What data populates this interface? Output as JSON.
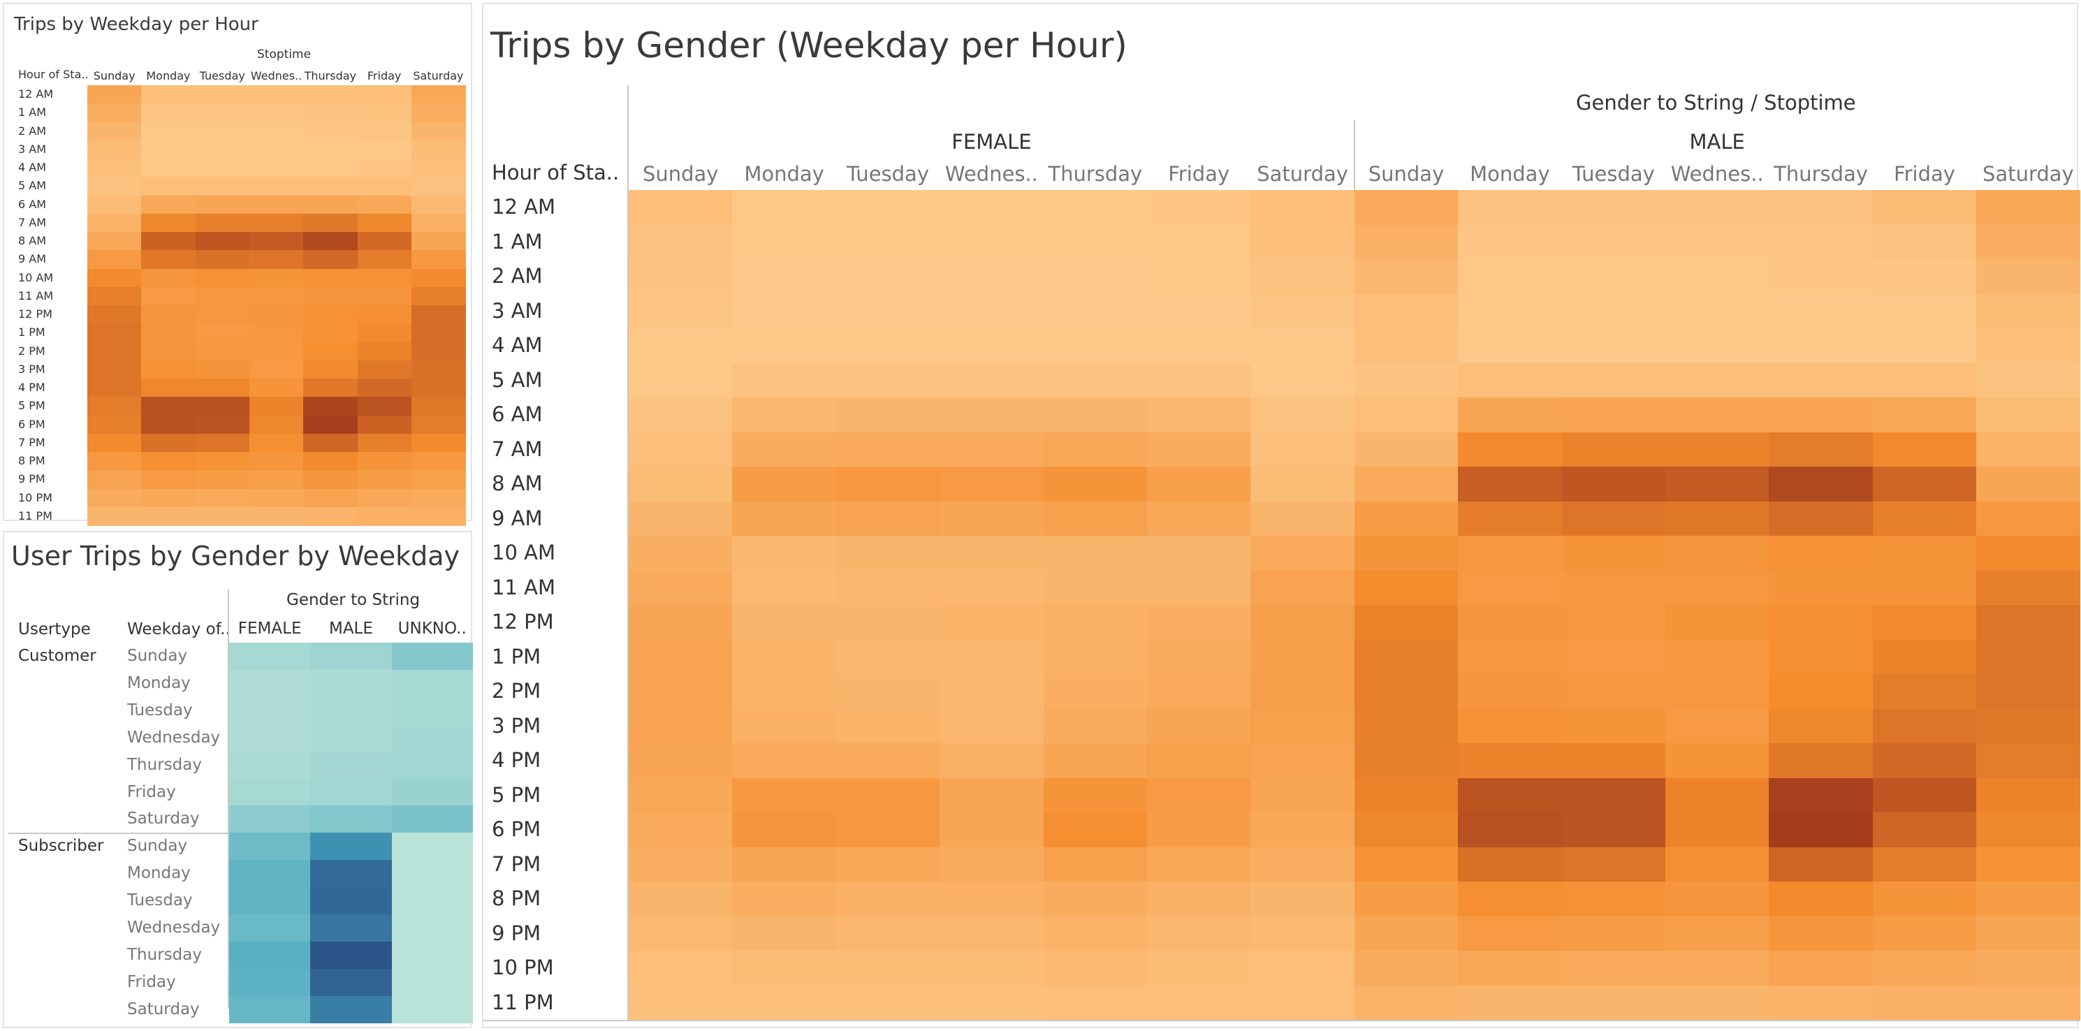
{
  "panels": {
    "weekday_hour": {
      "title": "Trips by Weekday per Hour",
      "col_header": "Stoptime",
      "row_header": "Hour of Sta.."
    },
    "usertype": {
      "title": "User Trips by Gender by Weekday",
      "col_header": "Gender to String",
      "row_header_1": "Usertype",
      "row_header_2": "Weekday of.."
    },
    "gender_hour": {
      "title": "Trips by Gender (Weekday per Hour)",
      "col_header": "Gender to String  /  Stoptime",
      "row_header": "Hour of Sta.."
    }
  },
  "colors": {
    "orange_light": "#fdc98a",
    "orange_mid": "#f58c2d",
    "orange_dark": "#a23a1c",
    "teal_light": "#bde5d9",
    "teal_mid": "#45a5be",
    "teal_dark": "#2b5287"
  },
  "chart_data": [
    {
      "type": "heatmap",
      "title": "Trips by Weekday per Hour",
      "x_header": "Stoptime",
      "y_header": "Hour of Sta..",
      "columns": [
        "Sunday",
        "Monday",
        "Tuesday",
        "Wednes..",
        "Thursday",
        "Friday",
        "Saturday"
      ],
      "rows": [
        "12 AM",
        "1 AM",
        "2 AM",
        "3 AM",
        "4 AM",
        "5 AM",
        "6 AM",
        "7 AM",
        "8 AM",
        "9 AM",
        "10 AM",
        "11 AM",
        "12 PM",
        "1 PM",
        "2 PM",
        "3 PM",
        "4 PM",
        "5 PM",
        "6 PM",
        "7 PM",
        "8 PM",
        "9 PM",
        "10 PM",
        "11 PM"
      ],
      "values": [
        [
          0.32,
          0.08,
          0.08,
          0.08,
          0.09,
          0.1,
          0.3
        ],
        [
          0.24,
          0.04,
          0.04,
          0.04,
          0.05,
          0.06,
          0.24
        ],
        [
          0.18,
          0.02,
          0.02,
          0.02,
          0.03,
          0.04,
          0.18
        ],
        [
          0.12,
          0.01,
          0.01,
          0.01,
          0.02,
          0.02,
          0.12
        ],
        [
          0.08,
          0.02,
          0.02,
          0.02,
          0.02,
          0.03,
          0.08
        ],
        [
          0.06,
          0.1,
          0.1,
          0.1,
          0.1,
          0.1,
          0.07
        ],
        [
          0.12,
          0.3,
          0.32,
          0.32,
          0.32,
          0.3,
          0.14
        ],
        [
          0.2,
          0.58,
          0.62,
          0.62,
          0.66,
          0.58,
          0.22
        ],
        [
          0.3,
          0.78,
          0.84,
          0.82,
          0.92,
          0.74,
          0.32
        ],
        [
          0.42,
          0.66,
          0.7,
          0.68,
          0.74,
          0.64,
          0.44
        ],
        [
          0.56,
          0.46,
          0.5,
          0.48,
          0.5,
          0.5,
          0.56
        ],
        [
          0.62,
          0.42,
          0.44,
          0.44,
          0.46,
          0.46,
          0.62
        ],
        [
          0.66,
          0.46,
          0.44,
          0.46,
          0.5,
          0.52,
          0.72
        ],
        [
          0.68,
          0.46,
          0.42,
          0.44,
          0.5,
          0.56,
          0.72
        ],
        [
          0.68,
          0.46,
          0.44,
          0.44,
          0.52,
          0.6,
          0.72
        ],
        [
          0.68,
          0.5,
          0.48,
          0.42,
          0.56,
          0.66,
          0.7
        ],
        [
          0.68,
          0.58,
          0.58,
          0.48,
          0.66,
          0.74,
          0.7
        ],
        [
          0.64,
          0.88,
          0.88,
          0.6,
          0.94,
          0.86,
          0.66
        ],
        [
          0.62,
          0.88,
          0.86,
          0.58,
          0.98,
          0.78,
          0.64
        ],
        [
          0.56,
          0.7,
          0.68,
          0.52,
          0.76,
          0.62,
          0.56
        ],
        [
          0.44,
          0.52,
          0.5,
          0.46,
          0.56,
          0.48,
          0.44
        ],
        [
          0.34,
          0.42,
          0.4,
          0.38,
          0.46,
          0.4,
          0.36
        ],
        [
          0.26,
          0.3,
          0.28,
          0.3,
          0.34,
          0.3,
          0.28
        ],
        [
          0.18,
          0.18,
          0.18,
          0.18,
          0.2,
          0.22,
          0.22
        ]
      ]
    },
    {
      "type": "heatmap",
      "title": "User Trips by Gender by Weekday",
      "x_header": "Gender to String",
      "columns": [
        "FEMALE",
        "MALE",
        "UNKNO.."
      ],
      "row_groups": [
        {
          "label": "Customer",
          "rows": [
            "Sunday",
            "Monday",
            "Tuesday",
            "Wednesday",
            "Thursday",
            "Friday",
            "Saturday"
          ]
        },
        {
          "label": "Subscriber",
          "rows": [
            "Sunday",
            "Monday",
            "Tuesday",
            "Wednesday",
            "Thursday",
            "Friday",
            "Saturday"
          ]
        }
      ],
      "values": [
        [
          0.1,
          0.14,
          0.26
        ],
        [
          0.06,
          0.08,
          0.1
        ],
        [
          0.06,
          0.08,
          0.1
        ],
        [
          0.06,
          0.08,
          0.11
        ],
        [
          0.08,
          0.11,
          0.13
        ],
        [
          0.1,
          0.13,
          0.16
        ],
        [
          0.22,
          0.26,
          0.3
        ],
        [
          0.36,
          0.66,
          0.02
        ],
        [
          0.42,
          0.86,
          0.02
        ],
        [
          0.42,
          0.88,
          0.02
        ],
        [
          0.38,
          0.8,
          0.02
        ],
        [
          0.46,
          0.99,
          0.02
        ],
        [
          0.44,
          0.9,
          0.02
        ],
        [
          0.4,
          0.76,
          0.02
        ]
      ]
    },
    {
      "type": "heatmap",
      "title": "Trips by Gender (Weekday per Hour)",
      "x_header": "Gender to String  /  Stoptime",
      "y_header": "Hour of Sta..",
      "groups": [
        {
          "label": "FEMALE",
          "columns": [
            "Sunday",
            "Monday",
            "Tuesday",
            "Wednes..",
            "Thursday",
            "Friday",
            "Saturday"
          ]
        },
        {
          "label": "MALE",
          "columns": [
            "Sunday",
            "Monday",
            "Tuesday",
            "Wednes..",
            "Thursday",
            "Friday",
            "Saturday"
          ]
        }
      ],
      "rows": [
        "12 AM",
        "1 AM",
        "2 AM",
        "3 AM",
        "4 AM",
        "5 AM",
        "6 AM",
        "7 AM",
        "8 AM",
        "9 AM",
        "10 AM",
        "11 AM",
        "12 PM",
        "1 PM",
        "2 PM",
        "3 PM",
        "4 PM",
        "5 PM",
        "6 PM",
        "7 PM",
        "8 PM",
        "9 PM",
        "10 PM",
        "11 PM"
      ],
      "values": [
        [
          0.1,
          0.02,
          0.02,
          0.02,
          0.02,
          0.03,
          0.1,
          0.28,
          0.06,
          0.06,
          0.06,
          0.07,
          0.12,
          0.3
        ],
        [
          0.07,
          0.01,
          0.01,
          0.01,
          0.01,
          0.02,
          0.08,
          0.22,
          0.03,
          0.03,
          0.03,
          0.04,
          0.06,
          0.24
        ],
        [
          0.05,
          0.0,
          0.0,
          0.0,
          0.0,
          0.01,
          0.06,
          0.16,
          0.02,
          0.02,
          0.02,
          0.03,
          0.04,
          0.18
        ],
        [
          0.04,
          0.0,
          0.0,
          0.0,
          0.0,
          0.0,
          0.04,
          0.1,
          0.01,
          0.01,
          0.01,
          0.02,
          0.02,
          0.12
        ],
        [
          0.02,
          0.01,
          0.01,
          0.01,
          0.01,
          0.01,
          0.02,
          0.08,
          0.02,
          0.02,
          0.02,
          0.02,
          0.02,
          0.08
        ],
        [
          0.02,
          0.06,
          0.06,
          0.06,
          0.06,
          0.06,
          0.02,
          0.05,
          0.1,
          0.1,
          0.1,
          0.1,
          0.1,
          0.06
        ],
        [
          0.06,
          0.16,
          0.18,
          0.18,
          0.18,
          0.16,
          0.06,
          0.1,
          0.32,
          0.34,
          0.34,
          0.34,
          0.3,
          0.12
        ],
        [
          0.08,
          0.26,
          0.28,
          0.28,
          0.3,
          0.26,
          0.08,
          0.18,
          0.56,
          0.6,
          0.6,
          0.64,
          0.56,
          0.2
        ],
        [
          0.12,
          0.4,
          0.44,
          0.42,
          0.48,
          0.38,
          0.12,
          0.28,
          0.8,
          0.84,
          0.82,
          0.92,
          0.76,
          0.32
        ],
        [
          0.18,
          0.32,
          0.34,
          0.32,
          0.36,
          0.3,
          0.18,
          0.4,
          0.64,
          0.68,
          0.66,
          0.72,
          0.62,
          0.44
        ],
        [
          0.24,
          0.16,
          0.18,
          0.18,
          0.18,
          0.18,
          0.28,
          0.48,
          0.44,
          0.48,
          0.46,
          0.5,
          0.48,
          0.56
        ],
        [
          0.28,
          0.14,
          0.16,
          0.16,
          0.18,
          0.18,
          0.34,
          0.54,
          0.42,
          0.44,
          0.44,
          0.48,
          0.48,
          0.62
        ],
        [
          0.32,
          0.18,
          0.18,
          0.2,
          0.22,
          0.24,
          0.38,
          0.6,
          0.46,
          0.44,
          0.48,
          0.52,
          0.56,
          0.68
        ],
        [
          0.34,
          0.2,
          0.16,
          0.16,
          0.22,
          0.26,
          0.38,
          0.62,
          0.44,
          0.42,
          0.44,
          0.52,
          0.6,
          0.68
        ],
        [
          0.34,
          0.2,
          0.18,
          0.16,
          0.24,
          0.28,
          0.38,
          0.62,
          0.46,
          0.44,
          0.44,
          0.54,
          0.64,
          0.68
        ],
        [
          0.34,
          0.22,
          0.2,
          0.16,
          0.26,
          0.32,
          0.36,
          0.62,
          0.5,
          0.48,
          0.42,
          0.58,
          0.68,
          0.66
        ],
        [
          0.32,
          0.28,
          0.28,
          0.22,
          0.32,
          0.36,
          0.34,
          0.62,
          0.6,
          0.6,
          0.48,
          0.66,
          0.74,
          0.64
        ],
        [
          0.3,
          0.44,
          0.44,
          0.32,
          0.48,
          0.42,
          0.32,
          0.6,
          0.86,
          0.86,
          0.6,
          0.96,
          0.84,
          0.6
        ],
        [
          0.28,
          0.46,
          0.44,
          0.32,
          0.52,
          0.4,
          0.3,
          0.58,
          0.88,
          0.86,
          0.6,
          0.99,
          0.76,
          0.58
        ],
        [
          0.24,
          0.32,
          0.3,
          0.26,
          0.36,
          0.3,
          0.24,
          0.5,
          0.7,
          0.68,
          0.52,
          0.76,
          0.64,
          0.5
        ],
        [
          0.18,
          0.24,
          0.22,
          0.22,
          0.26,
          0.22,
          0.18,
          0.4,
          0.52,
          0.5,
          0.46,
          0.56,
          0.48,
          0.4
        ],
        [
          0.14,
          0.18,
          0.16,
          0.16,
          0.2,
          0.16,
          0.14,
          0.32,
          0.42,
          0.4,
          0.38,
          0.46,
          0.4,
          0.32
        ],
        [
          0.1,
          0.12,
          0.12,
          0.12,
          0.14,
          0.12,
          0.1,
          0.26,
          0.3,
          0.28,
          0.28,
          0.34,
          0.3,
          0.26
        ],
        [
          0.08,
          0.08,
          0.08,
          0.08,
          0.1,
          0.1,
          0.1,
          0.2,
          0.18,
          0.18,
          0.18,
          0.2,
          0.22,
          0.22
        ]
      ]
    }
  ]
}
